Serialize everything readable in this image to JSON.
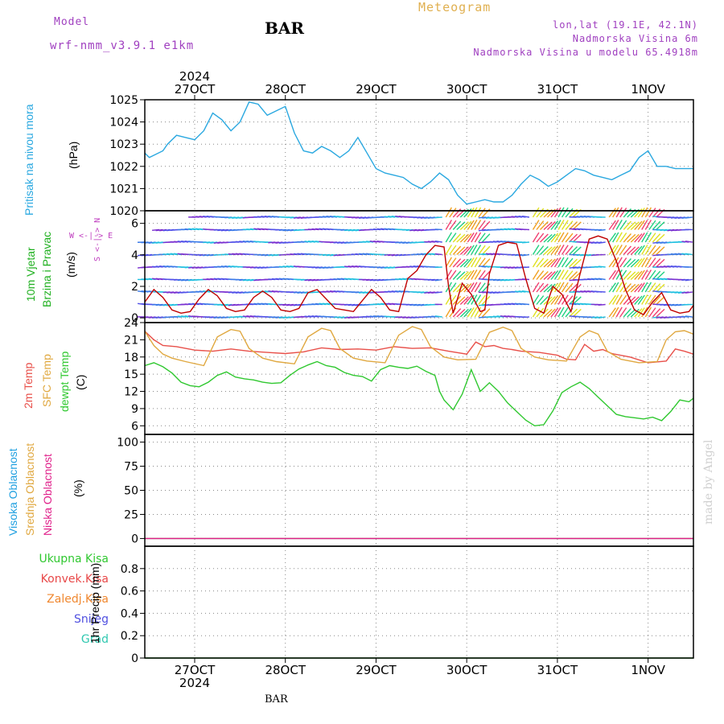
{
  "header": {
    "model_label": "Model",
    "model_name": "wrf-nmm_v3.9.1 e1km",
    "station": "BAR",
    "subtitle": "Meteogram",
    "coords": "lon,lat (19.1E, 42.1N)",
    "elevation": "Nadmorska Visina 6m",
    "model_elevation": "Nadmorska Visina u modelu 65.4918m",
    "credit": "made by Angel",
    "footer_station": "BAR",
    "year": "2024"
  },
  "colors": {
    "pressure": "#2aa8e0",
    "temp2m": "#e8504a",
    "sfc": "#e0a840",
    "dewpt": "#30c830",
    "high_cloud": "#20a0e0",
    "mid_cloud": "#e0a840",
    "low_cloud": "#e0208a",
    "total_precip": "#30c830",
    "conv_precip": "#e84848",
    "frozen_precip": "#f08830",
    "snow": "#5050e0",
    "grad": "#30c8b0",
    "wind_label": "#20b020",
    "wind_axis": "#c040c0"
  },
  "chart_data": {
    "type": "line",
    "x_dates": [
      "27OCT",
      "28OCT",
      "29OCT",
      "30OCT",
      "31OCT",
      "1NOV"
    ],
    "x_range_days": [
      -0.55,
      5.5
    ],
    "panels": [
      {
        "id": "pressure",
        "ylabel": "(hPa)",
        "side_labels": [
          "Pritisak na nivou mora"
        ],
        "ylim": [
          1020,
          1025
        ],
        "yticks": [
          1020,
          1021,
          1022,
          1023,
          1024,
          1025
        ],
        "series": [
          {
            "x": [
              -0.55,
              -0.5,
              -0.45,
              -0.35,
              -0.3,
              -0.2,
              -0.1,
              0,
              0.1,
              0.2,
              0.3,
              0.4,
              0.5,
              0.6,
              0.7,
              0.8,
              0.9,
              1.0,
              1.1,
              1.2,
              1.3,
              1.4,
              1.5,
              1.6,
              1.7,
              1.8,
              1.9,
              2.0,
              2.1,
              2.2,
              2.3,
              2.4,
              2.5,
              2.6,
              2.7,
              2.8,
              2.9,
              3.0,
              3.1,
              3.2,
              3.3,
              3.4,
              3.5,
              3.6,
              3.7,
              3.8,
              3.9,
              4.0,
              4.1,
              4.2,
              4.3,
              4.4,
              4.5,
              4.6,
              4.7,
              4.8,
              4.9,
              5.0,
              5.1,
              5.2,
              5.3,
              5.4,
              5.5
            ],
            "y": [
              1022.6,
              1022.4,
              1022.5,
              1022.7,
              1023.0,
              1023.4,
              1023.3,
              1023.2,
              1023.6,
              1024.4,
              1024.1,
              1023.6,
              1024.0,
              1024.9,
              1024.8,
              1024.3,
              1024.5,
              1024.7,
              1023.5,
              1022.7,
              1022.6,
              1022.9,
              1022.7,
              1022.4,
              1022.7,
              1023.3,
              1022.6,
              1021.9,
              1021.7,
              1021.6,
              1021.5,
              1021.2,
              1021.0,
              1021.3,
              1021.7,
              1021.4,
              1020.7,
              1020.3,
              1020.4,
              1020.5,
              1020.4,
              1020.4,
              1020.7,
              1021.2,
              1021.6,
              1021.4,
              1021.1,
              1021.3,
              1021.6,
              1021.9,
              1021.8,
              1021.6,
              1021.5,
              1021.4,
              1021.6,
              1021.8,
              1022.4,
              1022.7,
              1022.0,
              1022.0,
              1021.9,
              1021.9,
              1021.9
            ]
          }
        ]
      },
      {
        "id": "wind",
        "ylabel": "(m/s)",
        "side_labels": [
          "10m Vjetar",
          "Brzina i Pravac"
        ],
        "compass_label": "W <-|-> E",
        "compass_ns": "S <-|-> N",
        "ylim": [
          -0.3,
          6.8
        ],
        "yticks": [
          0,
          2,
          4,
          6
        ],
        "series": [
          {
            "name": "speed",
            "x": [
              -0.55,
              -0.45,
              -0.35,
              -0.25,
              -0.15,
              -0.05,
              0.05,
              0.15,
              0.25,
              0.35,
              0.45,
              0.55,
              0.65,
              0.75,
              0.85,
              0.95,
              1.05,
              1.15,
              1.25,
              1.35,
              1.45,
              1.55,
              1.65,
              1.75,
              1.85,
              1.95,
              2.05,
              2.15,
              2.25,
              2.35,
              2.45,
              2.55,
              2.65,
              2.75,
              2.8,
              2.85,
              2.95,
              3.05,
              3.15,
              3.2,
              3.25,
              3.35,
              3.45,
              3.55,
              3.65,
              3.75,
              3.85,
              3.95,
              4.05,
              4.15,
              4.25,
              4.35,
              4.45,
              4.55,
              4.65,
              4.75,
              4.85,
              4.95,
              5.05,
              5.15,
              5.25,
              5.35,
              5.45,
              5.5
            ],
            "y": [
              1.0,
              1.8,
              1.3,
              0.5,
              0.3,
              0.4,
              1.2,
              1.8,
              1.4,
              0.6,
              0.4,
              0.5,
              1.3,
              1.7,
              1.3,
              0.5,
              0.4,
              0.6,
              1.6,
              1.8,
              1.2,
              0.6,
              0.5,
              0.4,
              1.1,
              1.8,
              1.3,
              0.5,
              0.4,
              2.5,
              3.0,
              4.0,
              4.6,
              4.5,
              2.0,
              0.3,
              2.2,
              1.5,
              0.4,
              0.5,
              2.8,
              4.6,
              4.8,
              4.7,
              2.5,
              0.6,
              0.3,
              2.0,
              1.5,
              0.4,
              2.8,
              5.0,
              5.2,
              5.0,
              3.6,
              1.8,
              0.5,
              0.2,
              1.0,
              1.6,
              0.5,
              0.3,
              0.4,
              0.8
            ]
          }
        ]
      },
      {
        "id": "temperature",
        "ylabel": "(C)",
        "side_labels": [
          "2m Temp",
          "SFC Temp",
          "dewpt Temp"
        ],
        "ylim": [
          4.5,
          24
        ],
        "yticks": [
          6,
          9,
          12,
          15,
          18,
          21,
          24
        ],
        "series": [
          {
            "name": "2m Temp",
            "x": [
              -0.55,
              -0.45,
              -0.35,
              -0.2,
              0,
              0.2,
              0.4,
              0.6,
              0.8,
              1.0,
              1.2,
              1.4,
              1.6,
              1.8,
              2.0,
              2.2,
              2.4,
              2.6,
              2.8,
              3.0,
              3.1,
              3.2,
              3.3,
              3.4,
              3.5,
              3.6,
              3.8,
              4.0,
              4.1,
              4.2,
              4.3,
              4.4,
              4.5,
              4.6,
              4.8,
              5.0,
              5.2,
              5.3,
              5.4,
              5.5
            ],
            "y": [
              22.5,
              21.0,
              20.0,
              19.8,
              19.2,
              19.0,
              19.4,
              19.0,
              18.8,
              18.6,
              18.9,
              19.6,
              19.3,
              19.4,
              19.2,
              19.8,
              19.5,
              19.6,
              19.0,
              18.5,
              20.6,
              19.8,
              20.0,
              19.5,
              19.3,
              19.0,
              18.8,
              18.3,
              17.6,
              17.5,
              20.2,
              19.0,
              19.3,
              18.6,
              18.0,
              17.0,
              17.3,
              19.4,
              19.0,
              18.5
            ]
          },
          {
            "name": "SFC Temp",
            "x": [
              -0.55,
              -0.45,
              -0.35,
              -0.25,
              -0.1,
              0.1,
              0.25,
              0.4,
              0.5,
              0.6,
              0.75,
              0.9,
              1.1,
              1.25,
              1.4,
              1.5,
              1.6,
              1.75,
              1.9,
              2.1,
              2.25,
              2.4,
              2.5,
              2.6,
              2.75,
              2.9,
              3.1,
              3.25,
              3.4,
              3.5,
              3.6,
              3.75,
              3.9,
              4.1,
              4.25,
              4.35,
              4.45,
              4.55,
              4.7,
              4.9,
              5.1,
              5.2,
              5.3,
              5.4,
              5.5
            ],
            "y": [
              22.5,
              20.0,
              18.5,
              17.8,
              17.2,
              16.5,
              21.5,
              22.8,
              22.5,
              19.5,
              17.8,
              17.2,
              16.8,
              21.5,
              23.0,
              22.6,
              19.5,
              17.8,
              17.3,
              17.0,
              21.8,
              23.3,
              22.8,
              19.8,
              18.0,
              17.5,
              17.6,
              22.3,
              23.2,
              22.6,
              19.5,
              18.0,
              17.5,
              17.3,
              21.5,
              22.6,
              22.0,
              19.0,
              17.6,
              17.0,
              17.2,
              21.0,
              22.4,
              22.6,
              22.0
            ]
          },
          {
            "name": "dewpt Temp",
            "x": [
              -0.55,
              -0.45,
              -0.35,
              -0.25,
              -0.15,
              -0.05,
              0.05,
              0.15,
              0.25,
              0.35,
              0.45,
              0.55,
              0.65,
              0.75,
              0.85,
              0.95,
              1.05,
              1.15,
              1.25,
              1.35,
              1.45,
              1.55,
              1.65,
              1.75,
              1.85,
              1.95,
              2.05,
              2.15,
              2.25,
              2.35,
              2.45,
              2.55,
              2.65,
              2.7,
              2.75,
              2.85,
              2.95,
              3.05,
              3.15,
              3.25,
              3.35,
              3.45,
              3.55,
              3.65,
              3.75,
              3.85,
              3.95,
              4.05,
              4.15,
              4.25,
              4.35,
              4.45,
              4.55,
              4.65,
              4.75,
              4.85,
              4.95,
              5.05,
              5.15,
              5.25,
              5.35,
              5.45,
              5.5
            ],
            "y": [
              16.5,
              17.0,
              16.3,
              15.2,
              13.6,
              13.0,
              12.8,
              13.6,
              14.8,
              15.4,
              14.5,
              14.2,
              14.0,
              13.6,
              13.4,
              13.5,
              14.8,
              15.9,
              16.6,
              17.2,
              16.5,
              16.2,
              15.3,
              14.8,
              14.6,
              13.8,
              15.8,
              16.5,
              16.2,
              16.0,
              16.4,
              15.5,
              14.8,
              12.0,
              10.5,
              8.8,
              11.5,
              15.8,
              12.0,
              13.5,
              12.0,
              10.0,
              8.5,
              7.0,
              6.0,
              6.2,
              8.6,
              11.8,
              12.8,
              13.6,
              12.5,
              11.0,
              9.5,
              8.0,
              7.6,
              7.4,
              7.2,
              7.5,
              6.9,
              8.5,
              10.5,
              10.2,
              10.8
            ]
          }
        ]
      },
      {
        "id": "clouds",
        "ylabel": "(%)",
        "side_labels": [
          "Visoka Oblacnost",
          "Srednja Oblacnost",
          "Niska Oblacnost"
        ],
        "ylim": [
          -8,
          108
        ],
        "yticks": [
          0,
          25,
          50,
          75,
          100
        ],
        "series": [
          {
            "name": "Visoka Oblacnost",
            "x": [
              -0.55,
              5.5
            ],
            "y": [
              0,
              0
            ]
          },
          {
            "name": "Srednja Oblacnost",
            "x": [
              -0.55,
              5.5
            ],
            "y": [
              0,
              0
            ]
          },
          {
            "name": "Niska Oblacnost",
            "x": [
              -0.55,
              5.5
            ],
            "y": [
              0,
              0
            ]
          }
        ]
      },
      {
        "id": "precip",
        "ylabel": "1hr Precip (mm)",
        "side_labels": [
          "Ukupna Kisa",
          "Konvek.Kisa",
          "Zaledj.Kisa",
          "Snijeg",
          "Grad"
        ],
        "ylim": [
          0,
          1.0
        ],
        "yticks": [
          0,
          0.2,
          0.4,
          0.6,
          0.8
        ],
        "series": [
          {
            "name": "Ukupna Kisa",
            "x": [
              -0.55,
              5.5
            ],
            "y": [
              0,
              0
            ]
          }
        ]
      }
    ]
  }
}
